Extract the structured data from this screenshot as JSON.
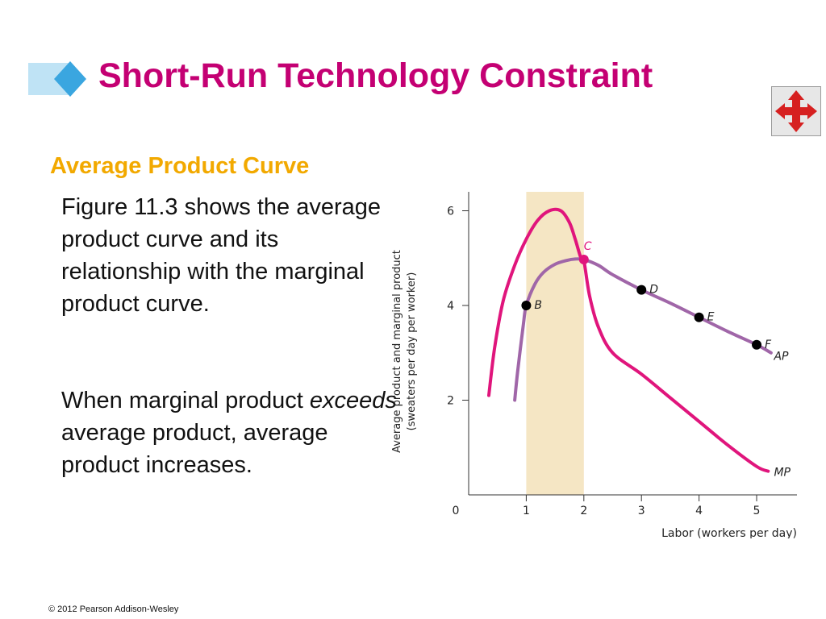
{
  "slide": {
    "title": "Short-Run Technology Constraint",
    "subtitle": "Average Product Curve",
    "paragraph1": "Figure 11.3 shows the average product curve and its relationship with the marginal product curve.",
    "paragraph2": {
      "before": "When marginal product ",
      "emphasis": "exceeds",
      "after": " average product, average product increases."
    },
    "footer": "© 2012 Pearson Addison-Wesley",
    "nav_icon": "four-way-arrows-icon"
  },
  "colors": {
    "title": "#c40073",
    "subtitle": "#f2a900",
    "mp_curve": "#e0157c",
    "ap_curve": "#a066a8",
    "shaded_region": "#f5e6c4",
    "nav_arrows": "#d62020",
    "deco_light": "#bfe3f5",
    "deco_diamond": "#3aa6e0"
  },
  "chart_data": {
    "type": "line",
    "xlabel": "Labor (workers per day)",
    "ylabel": "Average product and marginal product (sweaters per day per worker)",
    "ylabel_lines": [
      "Average product and marginal product",
      "(sweaters per day per worker)"
    ],
    "xlim": [
      0,
      5.7
    ],
    "ylim": [
      0,
      6.4
    ],
    "x_ticks": [
      "0",
      "1",
      "2",
      "3",
      "4",
      "5"
    ],
    "y_ticks": [
      "2",
      "4",
      "6"
    ],
    "shaded_x_range": [
      1,
      2
    ],
    "series": [
      {
        "name": "MP",
        "color": "#e0157c",
        "x": [
          0.35,
          0.45,
          0.6,
          0.8,
          1.0,
          1.2,
          1.4,
          1.6,
          1.75,
          1.85,
          1.95,
          2.0,
          2.1,
          2.25,
          2.5,
          3.0,
          3.5,
          4.0,
          4.5,
          5.0,
          5.2
        ],
        "y": [
          2.1,
          3.1,
          4.1,
          4.85,
          5.4,
          5.8,
          6.0,
          6.0,
          5.75,
          5.4,
          5.0,
          4.95,
          4.2,
          3.55,
          3.0,
          2.55,
          2.05,
          1.55,
          1.05,
          0.6,
          0.5
        ]
      },
      {
        "name": "AP",
        "color": "#a066a8",
        "x": [
          0.8,
          0.85,
          0.95,
          1.0,
          1.15,
          1.3,
          1.5,
          1.7,
          1.85,
          2.0,
          2.25,
          2.5,
          3.0,
          3.5,
          4.0,
          4.5,
          5.0,
          5.25
        ],
        "y": [
          2.0,
          2.6,
          3.6,
          4.0,
          4.45,
          4.7,
          4.87,
          4.95,
          4.98,
          4.97,
          4.85,
          4.65,
          4.33,
          4.05,
          3.75,
          3.45,
          3.17,
          3.0
        ]
      }
    ],
    "points": [
      {
        "label": "B",
        "x": 1,
        "y": 4.0,
        "color": "#000000"
      },
      {
        "label": "C",
        "x": 2,
        "y": 4.97,
        "color": "#e0157c"
      },
      {
        "label": "D",
        "x": 3,
        "y": 4.33,
        "color": "#000000"
      },
      {
        "label": "E",
        "x": 4,
        "y": 3.75,
        "color": "#000000"
      },
      {
        "label": "F",
        "x": 5,
        "y": 3.17,
        "color": "#000000"
      }
    ],
    "curve_labels": [
      {
        "text": "AP",
        "x": 5.3,
        "y": 2.85
      },
      {
        "text": "MP",
        "x": 5.3,
        "y": 0.4
      }
    ]
  }
}
